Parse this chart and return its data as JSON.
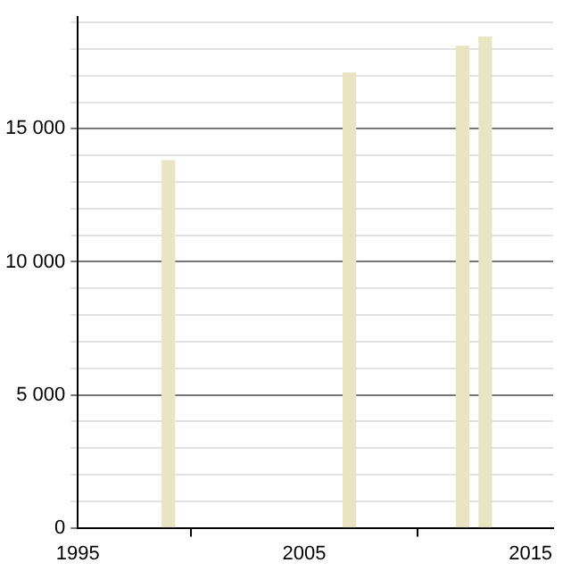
{
  "chart_data": {
    "type": "bar",
    "x": [
      1999,
      2007,
      2012,
      2013
    ],
    "values": [
      13800,
      17100,
      18100,
      18450
    ],
    "color": "#e9e4c2",
    "xlim": [
      1995,
      2016
    ],
    "xticks": [
      1995,
      2005,
      2015
    ],
    "ylim": [
      0,
      19200
    ],
    "yticks": [
      {
        "value": 0,
        "label": "0"
      },
      {
        "value": 1000,
        "label": null
      },
      {
        "value": 2000,
        "label": null
      },
      {
        "value": 3000,
        "label": null
      },
      {
        "value": 4000,
        "label": null
      },
      {
        "value": 5000,
        "label": "5 000"
      },
      {
        "value": 6000,
        "label": null
      },
      {
        "value": 7000,
        "label": null
      },
      {
        "value": 8000,
        "label": null
      },
      {
        "value": 9000,
        "label": null
      },
      {
        "value": 10000,
        "label": "10 000"
      },
      {
        "value": 11000,
        "label": null
      },
      {
        "value": 12000,
        "label": null
      },
      {
        "value": 13000,
        "label": null
      },
      {
        "value": 14000,
        "label": null
      },
      {
        "value": 15000,
        "label": "15 000"
      },
      {
        "value": 16000,
        "label": null
      },
      {
        "value": 17000,
        "label": null
      },
      {
        "value": 18000,
        "label": null
      },
      {
        "value": 19000,
        "label": null
      }
    ],
    "grid": "y",
    "legend": false
  }
}
